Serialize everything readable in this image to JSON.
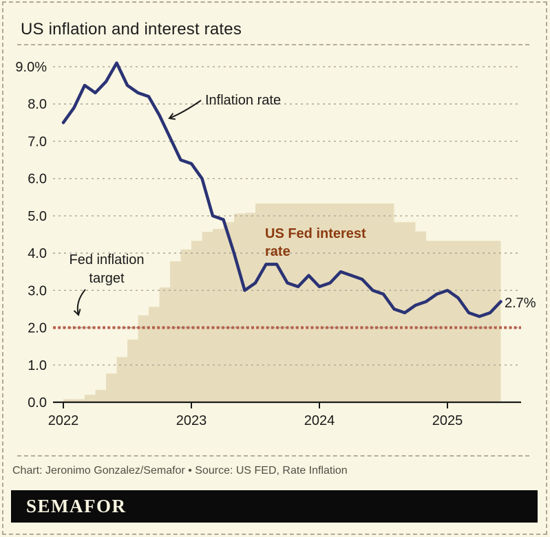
{
  "page": {
    "title": "US inflation and interest rates",
    "credit": "Chart: Jeronimo Gonzalez/Semafor • Source: US FED, Rate Inflation",
    "brand": "SEMAFOR"
  },
  "colors": {
    "background": "#f9f6e3",
    "inflation_line": "#2b3375",
    "fed_area": "#e7ddbc",
    "target_line": "#b5604b",
    "fed_label": "#8c3a10",
    "grid": "#a9a496",
    "axis": "#1a1a1a",
    "logo_bg": "#0b0b0b",
    "logo_text": "#f7f4e0"
  },
  "chart_data": {
    "type": "combo",
    "title": "US inflation and interest rates",
    "unit": "%",
    "ylim": [
      0,
      9.3
    ],
    "grid": "dashed-horizontal",
    "y_ticks": [
      "0.0",
      "1.0",
      "2.0",
      "3.0",
      "4.0",
      "5.0",
      "6.0",
      "7.0",
      "8.0",
      "9.0%"
    ],
    "x_ticks": [
      {
        "label": "2022",
        "month_index": 0
      },
      {
        "label": "2023",
        "month_index": 12
      },
      {
        "label": "2024",
        "month_index": 24
      },
      {
        "label": "2025",
        "month_index": 36
      }
    ],
    "x": [
      "2022-01",
      "2022-02",
      "2022-03",
      "2022-04",
      "2022-05",
      "2022-06",
      "2022-07",
      "2022-08",
      "2022-09",
      "2022-10",
      "2022-11",
      "2022-12",
      "2023-01",
      "2023-02",
      "2023-03",
      "2023-04",
      "2023-05",
      "2023-06",
      "2023-07",
      "2023-08",
      "2023-09",
      "2023-10",
      "2023-11",
      "2023-12",
      "2024-01",
      "2024-02",
      "2024-03",
      "2024-04",
      "2024-05",
      "2024-06",
      "2024-07",
      "2024-08",
      "2024-09",
      "2024-10",
      "2024-11",
      "2024-12",
      "2025-01",
      "2025-02",
      "2025-03",
      "2025-04",
      "2025-05",
      "2025-06"
    ],
    "series": [
      {
        "name": "Inflation rate",
        "type": "line",
        "label_lines": [
          "Inflation rate"
        ],
        "values": [
          7.5,
          7.9,
          8.5,
          8.3,
          8.6,
          9.1,
          8.5,
          8.3,
          8.2,
          7.7,
          7.1,
          6.5,
          6.4,
          6.0,
          5.0,
          4.9,
          4.0,
          3.0,
          3.2,
          3.7,
          3.7,
          3.2,
          3.1,
          3.4,
          3.1,
          3.2,
          3.5,
          3.4,
          3.3,
          3.0,
          2.9,
          2.5,
          2.4,
          2.6,
          2.7,
          2.9,
          3.0,
          2.8,
          2.4,
          2.3,
          2.4,
          2.7
        ]
      },
      {
        "name": "US Fed interest rate",
        "type": "step-area",
        "label_lines": [
          "US Fed interest",
          "rate"
        ],
        "values": [
          0.08,
          0.08,
          0.2,
          0.33,
          0.77,
          1.21,
          1.68,
          2.33,
          2.56,
          3.08,
          3.78,
          4.1,
          4.33,
          4.57,
          4.65,
          4.83,
          5.06,
          5.08,
          5.33,
          5.33,
          5.33,
          5.33,
          5.33,
          5.33,
          5.33,
          5.33,
          5.33,
          5.33,
          5.33,
          5.33,
          5.33,
          4.83,
          4.83,
          4.58,
          4.33,
          4.33,
          4.33,
          4.33,
          4.33,
          4.33,
          4.33,
          4.33
        ]
      }
    ],
    "target_line": {
      "value": 2.0,
      "label_lines": [
        "Fed inflation",
        "target"
      ]
    },
    "end_label": "2.7%"
  }
}
